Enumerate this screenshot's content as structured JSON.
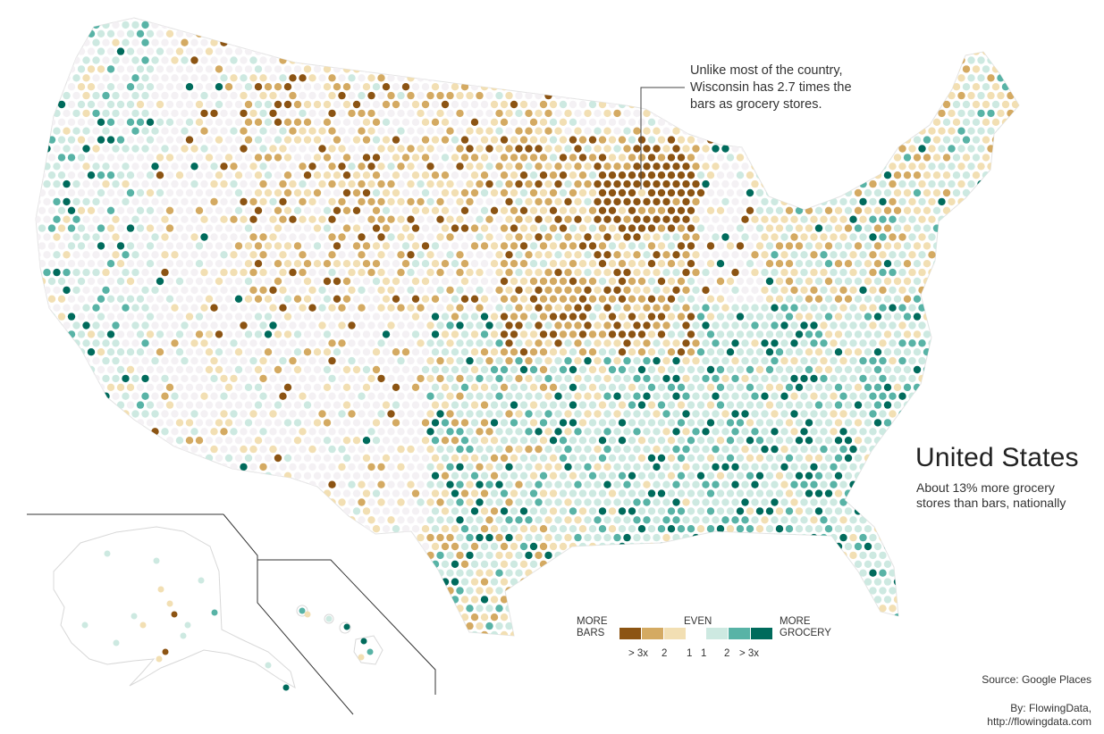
{
  "map": {
    "title": "United States",
    "subtitle_lines": [
      "About 13% more grocery",
      "stores than bars, nationally"
    ],
    "annotation_lines": [
      "Unlike most of the country,",
      "Wisconsin has 2.7 times the",
      "bars as grocery stores."
    ],
    "source": "Source: Google Places",
    "credit_lines": [
      "By: FlowingData,",
      "http://flowingdata.com"
    ],
    "insets": [
      "Alaska",
      "Hawaii"
    ]
  },
  "legend": {
    "left_label_lines": [
      "MORE",
      "BARS"
    ],
    "center_label": "EVEN",
    "right_label_lines": [
      "MORE",
      "GROCERY"
    ],
    "ticks": [
      "> 3x",
      "2",
      "1",
      "1",
      "2",
      "> 3x"
    ],
    "colors": [
      "#8c5413",
      "#d4aa62",
      "#f2dfb3",
      "#cde9e1",
      "#58b3a6",
      "#006b5c"
    ],
    "neutral_color": "#f4f1f4"
  }
}
